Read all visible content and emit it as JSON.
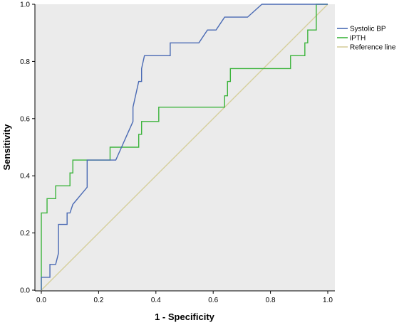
{
  "chart_data": {
    "type": "line",
    "title": "",
    "xlabel": "1 - Specificity",
    "ylabel": "Sensitivity",
    "xlim": [
      0,
      1
    ],
    "ylim": [
      0,
      1
    ],
    "xticks": [
      "0.0",
      "0.2",
      "0.4",
      "0.6",
      "0.8",
      "1.0"
    ],
    "yticks": [
      "0.0",
      "0.2",
      "0.4",
      "0.6",
      "0.8",
      "1.0"
    ],
    "grid": false,
    "legend_position": "right",
    "plot_background": "#ebebeb",
    "series": [
      {
        "name": "Systolic BP",
        "color": "#4a6ab4",
        "x": [
          0,
          0,
          0.03,
          0.03,
          0.05,
          0.06,
          0.06,
          0.06,
          0.07,
          0.07,
          0.09,
          0.09,
          0.1,
          0.11,
          0.16,
          0.16,
          0.26,
          0.28,
          0.3,
          0.32,
          0.32,
          0.34,
          0.35,
          0.35,
          0.36,
          0.37,
          0.45,
          0.45,
          0.55,
          0.55,
          0.58,
          0.61,
          0.64,
          0.72,
          0.77,
          0.78,
          1.0
        ],
        "y": [
          0,
          0.045,
          0.045,
          0.09,
          0.09,
          0.13,
          0.18,
          0.23,
          0.23,
          0.23,
          0.23,
          0.27,
          0.27,
          0.3,
          0.36,
          0.455,
          0.455,
          0.5,
          0.545,
          0.59,
          0.64,
          0.73,
          0.73,
          0.775,
          0.82,
          0.82,
          0.82,
          0.865,
          0.865,
          0.865,
          0.91,
          0.91,
          0.955,
          0.955,
          1.0,
          1.0,
          1.0
        ]
      },
      {
        "name": "iPTH",
        "color": "#3cb43c",
        "x": [
          0,
          0,
          0.02,
          0.02,
          0.05,
          0.05,
          0.1,
          0.1,
          0.11,
          0.11,
          0.24,
          0.24,
          0.34,
          0.34,
          0.35,
          0.35,
          0.41,
          0.41,
          0.64,
          0.64,
          0.65,
          0.65,
          0.66,
          0.66,
          0.67,
          0.67,
          0.87,
          0.87,
          0.92,
          0.92,
          0.93,
          0.93,
          0.96,
          0.96,
          1.0
        ],
        "y": [
          0,
          0.27,
          0.27,
          0.32,
          0.32,
          0.365,
          0.365,
          0.41,
          0.41,
          0.455,
          0.455,
          0.5,
          0.5,
          0.545,
          0.545,
          0.59,
          0.59,
          0.64,
          0.64,
          0.68,
          0.68,
          0.73,
          0.73,
          0.775,
          0.775,
          0.775,
          0.775,
          0.82,
          0.82,
          0.865,
          0.865,
          0.91,
          0.91,
          1.0,
          1.0
        ]
      },
      {
        "name": "Reference line",
        "color": "#d6cf9c",
        "x": [
          0,
          1
        ],
        "y": [
          0,
          1
        ]
      }
    ]
  }
}
